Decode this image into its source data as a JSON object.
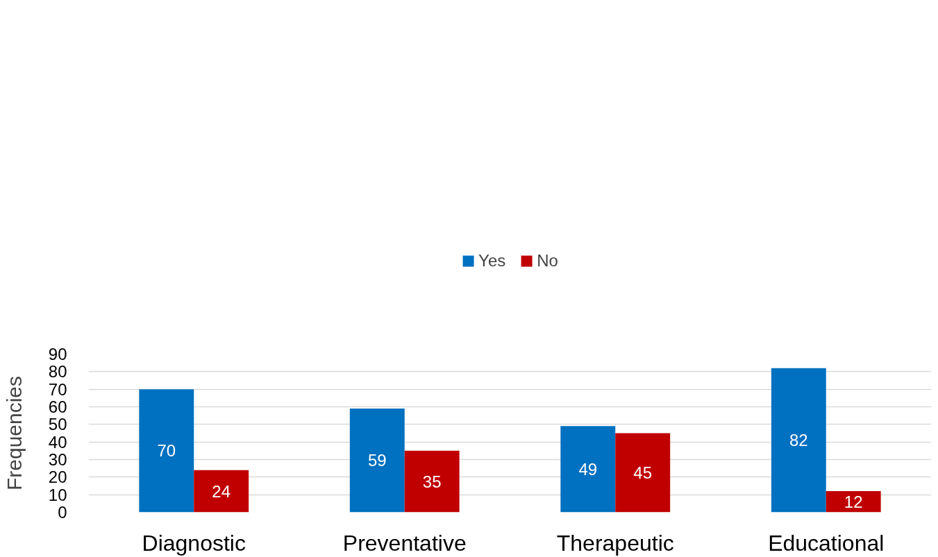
{
  "chart_data": {
    "type": "bar",
    "ylabel": "Frequencies",
    "categories": [
      "Diagnostic",
      "Preventative",
      "Therapeutic",
      "Educational"
    ],
    "series": [
      {
        "name": "Yes",
        "color": "#0070c0",
        "values": [
          70,
          59,
          49,
          82
        ]
      },
      {
        "name": "No",
        "color": "#c00000",
        "values": [
          24,
          35,
          45,
          12
        ]
      }
    ],
    "ylim": [
      0,
      90
    ],
    "yticks": [
      0,
      10,
      20,
      30,
      40,
      50,
      60,
      70,
      80,
      90
    ],
    "grid": "y",
    "legend": "top",
    "data_labels": true
  }
}
